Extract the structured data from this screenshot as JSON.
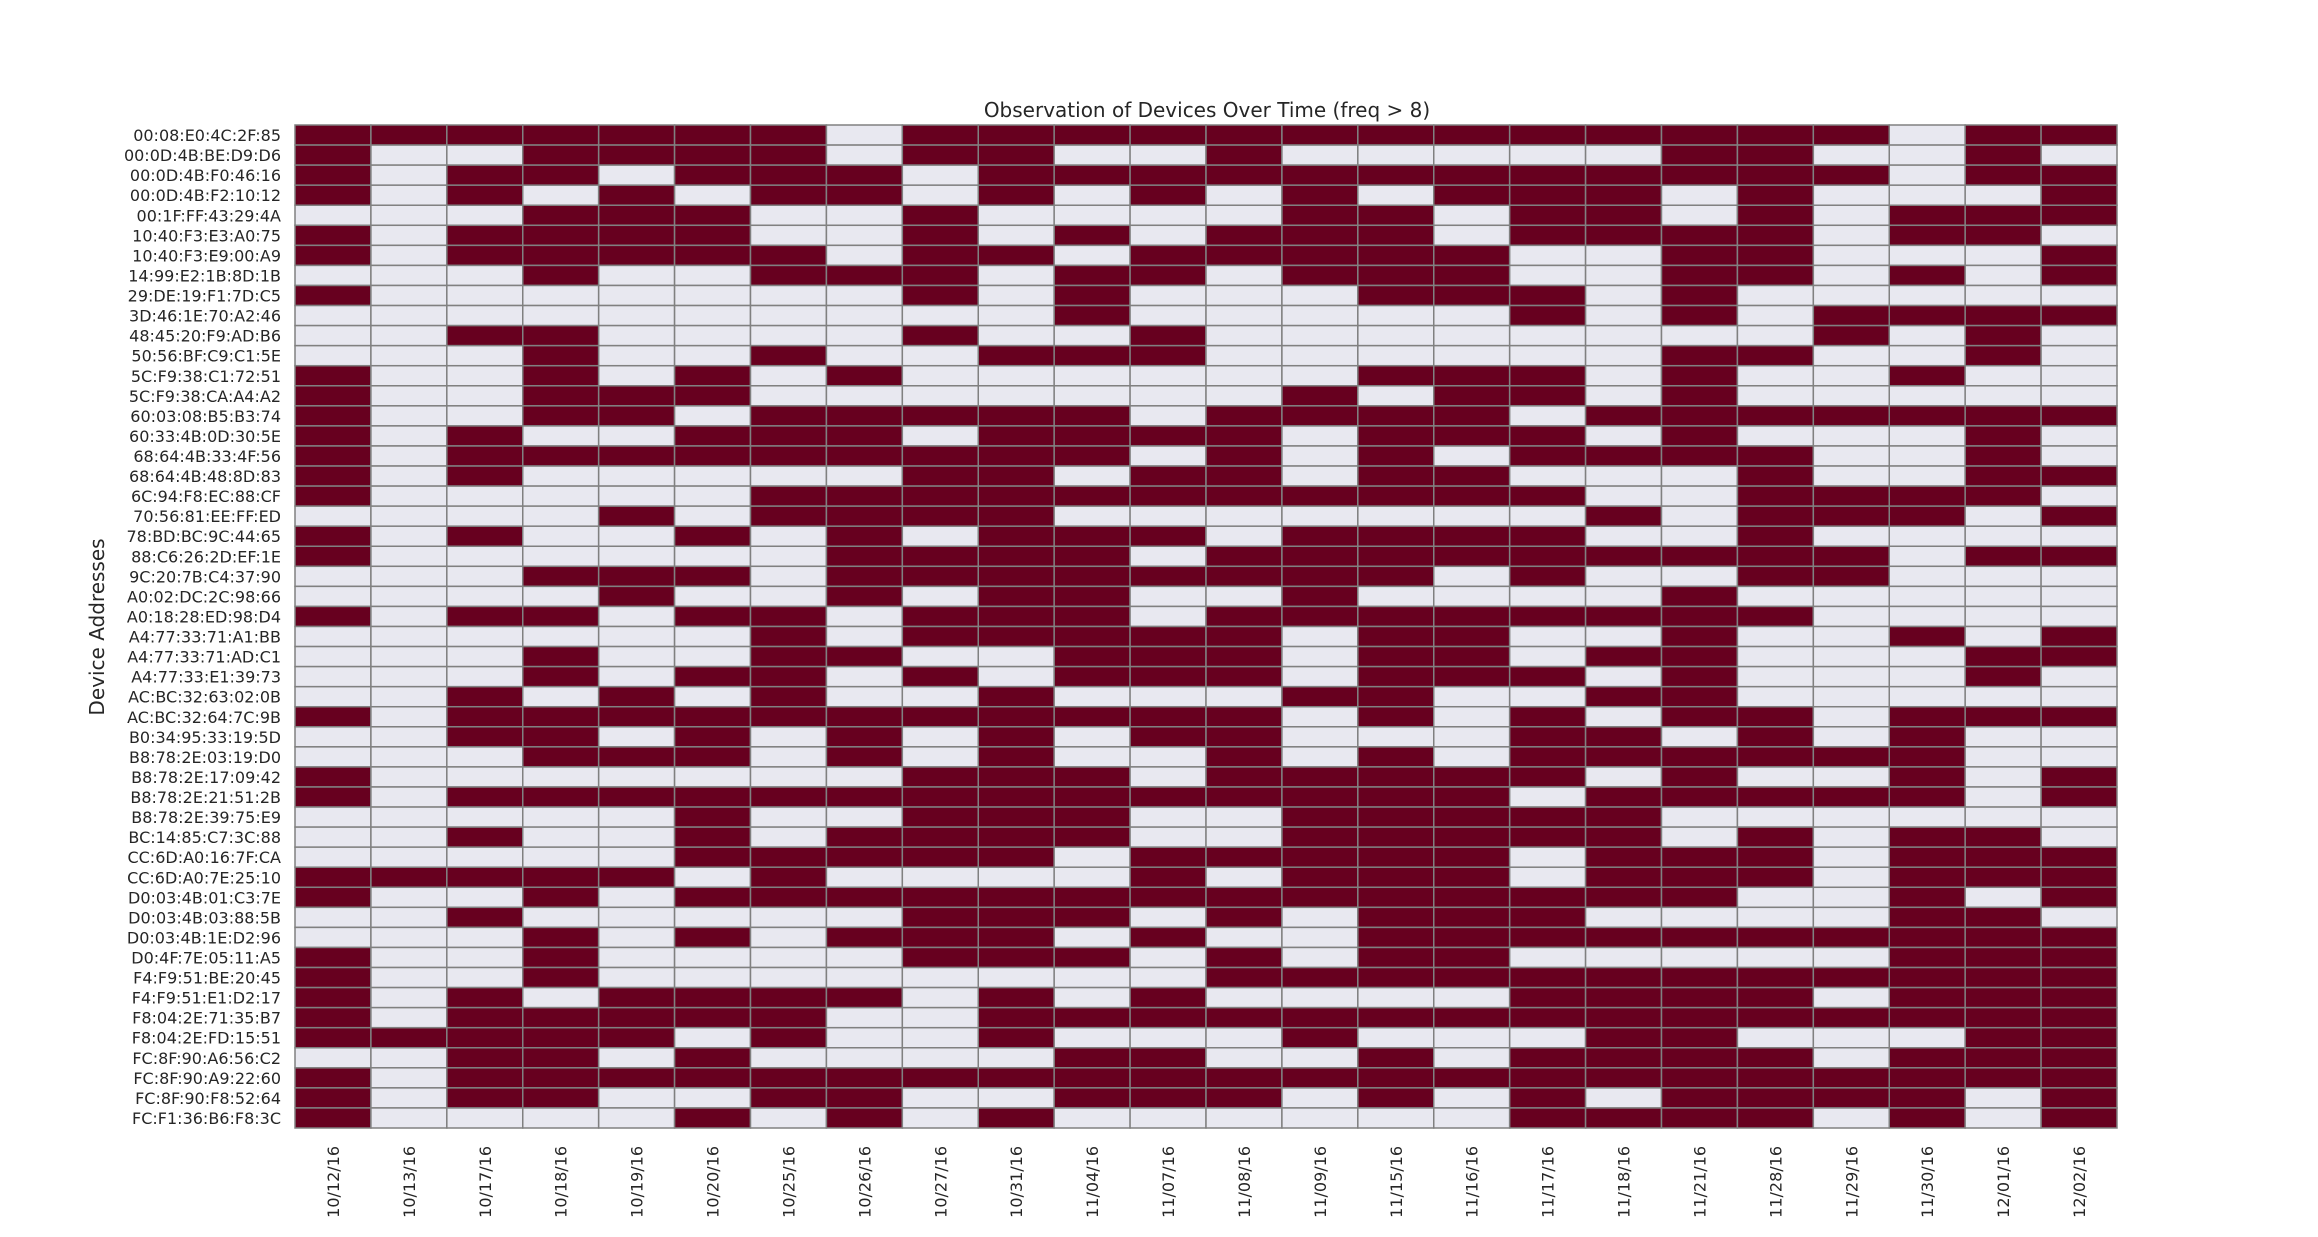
{
  "chart_data": {
    "type": "heatmap",
    "title": "Observation of Devices Over Time (freq > 8)",
    "xlabel": "",
    "ylabel": "Device Addresses",
    "colors": {
      "observed": "#67001f",
      "not_observed": "#e8e8f0",
      "cell_border": "#808080"
    },
    "grid": true,
    "columns": [
      "10/12/16",
      "10/13/16",
      "10/17/16",
      "10/18/16",
      "10/19/16",
      "10/20/16",
      "10/25/16",
      "10/26/16",
      "10/27/16",
      "10/31/16",
      "11/04/16",
      "11/07/16",
      "11/08/16",
      "11/09/16",
      "11/15/16",
      "11/16/16",
      "11/17/16",
      "11/18/16",
      "11/21/16",
      "11/28/16",
      "11/29/16",
      "11/30/16",
      "12/01/16",
      "12/02/16"
    ],
    "rows": [
      "00:08:E0:4C:2F:85",
      "00:0D:4B:BE:D9:D6",
      "00:0D:4B:F0:46:16",
      "00:0D:4B:F2:10:12",
      "00:1F:FF:43:29:4A",
      "10:40:F3:E3:A0:75",
      "10:40:F3:E9:00:A9",
      "14:99:E2:1B:8D:1B",
      "29:DE:19:F1:7D:C5",
      "3D:46:1E:70:A2:46",
      "48:45:20:F9:AD:B6",
      "50:56:BF:C9:C1:5E",
      "5C:F9:38:C1:72:51",
      "5C:F9:38:CA:A4:A2",
      "60:03:08:B5:B3:74",
      "60:33:4B:0D:30:5E",
      "68:64:4B:33:4F:56",
      "68:64:4B:48:8D:83",
      "6C:94:F8:EC:88:CF",
      "70:56:81:EE:FF:ED",
      "78:BD:BC:9C:44:65",
      "88:C6:26:2D:EF:1E",
      "9C:20:7B:C4:37:90",
      "A0:02:DC:2C:98:66",
      "A0:18:28:ED:98:D4",
      "A4:77:33:71:A1:BB",
      "A4:77:33:71:AD:C1",
      "A4:77:33:E1:39:73",
      "AC:BC:32:63:02:0B",
      "AC:BC:32:64:7C:9B",
      "B0:34:95:33:19:5D",
      "B8:78:2E:03:19:D0",
      "B8:78:2E:17:09:42",
      "B8:78:2E:21:51:2B",
      "B8:78:2E:39:75:E9",
      "BC:14:85:C7:3C:88",
      "CC:6D:A0:16:7F:CA",
      "CC:6D:A0:7E:25:10",
      "D0:03:4B:01:C3:7E",
      "D0:03:4B:03:88:5B",
      "D0:03:4B:1E:D2:96",
      "D0:4F:7E:05:11:A5",
      "F4:F9:51:BE:20:45",
      "F4:F9:51:E1:D2:17",
      "F8:04:2E:71:35:B7",
      "F8:04:2E:FD:15:51",
      "FC:8F:90:A6:56:C2",
      "FC:8F:90:A9:22:60",
      "FC:8F:90:F8:52:64",
      "FC:F1:36:B6:F8:3C"
    ],
    "values": [
      [
        1,
        1,
        1,
        1,
        1,
        1,
        1,
        0,
        1,
        1,
        1,
        1,
        1,
        1,
        1,
        1,
        1,
        1,
        1,
        1,
        1,
        0,
        1,
        1
      ],
      [
        1,
        0,
        0,
        1,
        1,
        1,
        1,
        0,
        1,
        1,
        0,
        0,
        1,
        0,
        0,
        0,
        0,
        0,
        1,
        1,
        0,
        0,
        1,
        0
      ],
      [
        1,
        0,
        1,
        1,
        0,
        1,
        1,
        1,
        0,
        1,
        1,
        1,
        1,
        1,
        1,
        1,
        1,
        1,
        1,
        1,
        1,
        0,
        1,
        1
      ],
      [
        1,
        0,
        1,
        0,
        1,
        0,
        1,
        1,
        0,
        1,
        0,
        1,
        0,
        1,
        0,
        1,
        1,
        1,
        0,
        1,
        0,
        0,
        0,
        1
      ],
      [
        0,
        0,
        0,
        1,
        1,
        1,
        0,
        0,
        1,
        0,
        0,
        0,
        0,
        1,
        1,
        0,
        1,
        1,
        0,
        1,
        0,
        1,
        1,
        1
      ],
      [
        1,
        0,
        1,
        1,
        1,
        1,
        0,
        0,
        1,
        0,
        1,
        0,
        1,
        1,
        1,
        0,
        1,
        1,
        1,
        1,
        0,
        1,
        1,
        0
      ],
      [
        1,
        0,
        1,
        1,
        1,
        1,
        1,
        0,
        1,
        1,
        0,
        1,
        1,
        1,
        1,
        1,
        0,
        0,
        1,
        1,
        0,
        0,
        0,
        1
      ],
      [
        0,
        0,
        0,
        1,
        0,
        0,
        1,
        1,
        1,
        0,
        1,
        1,
        0,
        1,
        1,
        1,
        0,
        0,
        1,
        1,
        0,
        1,
        0,
        1
      ],
      [
        1,
        0,
        0,
        0,
        0,
        0,
        0,
        0,
        1,
        0,
        1,
        0,
        0,
        0,
        1,
        1,
        1,
        0,
        1,
        0,
        0,
        0,
        0,
        0
      ],
      [
        0,
        0,
        0,
        0,
        0,
        0,
        0,
        0,
        0,
        0,
        1,
        0,
        0,
        0,
        0,
        0,
        1,
        0,
        1,
        0,
        1,
        1,
        1,
        1
      ],
      [
        0,
        0,
        1,
        1,
        0,
        0,
        0,
        0,
        1,
        0,
        0,
        1,
        0,
        0,
        0,
        0,
        0,
        0,
        0,
        0,
        1,
        0,
        1,
        0
      ],
      [
        0,
        0,
        0,
        1,
        0,
        0,
        1,
        0,
        0,
        1,
        1,
        1,
        0,
        0,
        0,
        0,
        0,
        0,
        1,
        1,
        0,
        0,
        1,
        0
      ],
      [
        1,
        0,
        0,
        1,
        0,
        1,
        0,
        1,
        0,
        0,
        0,
        0,
        0,
        0,
        1,
        1,
        1,
        0,
        1,
        0,
        0,
        1,
        0,
        0
      ],
      [
        1,
        0,
        0,
        1,
        1,
        1,
        0,
        0,
        0,
        0,
        0,
        0,
        0,
        1,
        0,
        1,
        1,
        0,
        1,
        0,
        0,
        0,
        0,
        0
      ],
      [
        1,
        0,
        0,
        1,
        1,
        0,
        1,
        1,
        1,
        1,
        1,
        0,
        1,
        1,
        1,
        1,
        0,
        1,
        1,
        1,
        1,
        1,
        1,
        1
      ],
      [
        1,
        0,
        1,
        0,
        0,
        1,
        1,
        1,
        0,
        1,
        1,
        1,
        1,
        0,
        1,
        1,
        1,
        0,
        1,
        0,
        0,
        0,
        1,
        0
      ],
      [
        1,
        0,
        1,
        1,
        1,
        1,
        1,
        1,
        1,
        1,
        1,
        0,
        1,
        0,
        1,
        0,
        1,
        1,
        1,
        1,
        0,
        0,
        1,
        0
      ],
      [
        1,
        0,
        1,
        0,
        0,
        0,
        0,
        0,
        1,
        1,
        0,
        1,
        1,
        0,
        1,
        1,
        0,
        0,
        0,
        1,
        0,
        0,
        1,
        1
      ],
      [
        1,
        0,
        0,
        0,
        0,
        0,
        1,
        1,
        1,
        1,
        1,
        1,
        1,
        1,
        1,
        1,
        1,
        0,
        0,
        1,
        1,
        1,
        1,
        0
      ],
      [
        0,
        0,
        0,
        0,
        1,
        0,
        1,
        1,
        1,
        1,
        0,
        0,
        0,
        0,
        0,
        0,
        0,
        1,
        0,
        1,
        1,
        1,
        0,
        1
      ],
      [
        1,
        0,
        1,
        0,
        0,
        1,
        0,
        1,
        0,
        1,
        1,
        1,
        0,
        1,
        1,
        1,
        1,
        0,
        0,
        1,
        0,
        0,
        0,
        0
      ],
      [
        1,
        0,
        0,
        0,
        0,
        0,
        0,
        1,
        1,
        1,
        1,
        0,
        1,
        1,
        1,
        1,
        1,
        1,
        1,
        1,
        1,
        0,
        1,
        1
      ],
      [
        0,
        0,
        0,
        1,
        1,
        1,
        0,
        1,
        1,
        1,
        1,
        1,
        1,
        1,
        1,
        0,
        1,
        0,
        0,
        1,
        1,
        0,
        0,
        0
      ],
      [
        0,
        0,
        0,
        0,
        1,
        0,
        0,
        1,
        0,
        1,
        1,
        0,
        0,
        1,
        0,
        0,
        0,
        0,
        1,
        0,
        0,
        0,
        0,
        0
      ],
      [
        1,
        0,
        1,
        1,
        0,
        1,
        1,
        0,
        1,
        1,
        1,
        0,
        1,
        1,
        1,
        1,
        1,
        1,
        1,
        1,
        0,
        0,
        0,
        0
      ],
      [
        0,
        0,
        0,
        0,
        0,
        0,
        1,
        0,
        1,
        1,
        1,
        1,
        1,
        0,
        1,
        1,
        0,
        0,
        1,
        0,
        0,
        1,
        0,
        1
      ],
      [
        0,
        0,
        0,
        1,
        0,
        0,
        1,
        1,
        0,
        0,
        1,
        1,
        1,
        0,
        1,
        1,
        0,
        1,
        1,
        0,
        0,
        0,
        1,
        1
      ],
      [
        0,
        0,
        0,
        1,
        0,
        1,
        1,
        0,
        1,
        0,
        1,
        1,
        1,
        0,
        1,
        1,
        1,
        0,
        1,
        0,
        0,
        0,
        1,
        0
      ],
      [
        0,
        0,
        1,
        0,
        1,
        0,
        1,
        0,
        0,
        1,
        0,
        0,
        0,
        1,
        1,
        0,
        0,
        1,
        1,
        0,
        0,
        0,
        0,
        0
      ],
      [
        1,
        0,
        1,
        1,
        1,
        1,
        1,
        1,
        1,
        1,
        1,
        1,
        1,
        0,
        1,
        0,
        1,
        0,
        1,
        1,
        0,
        1,
        1,
        1
      ],
      [
        0,
        0,
        1,
        1,
        0,
        1,
        0,
        1,
        0,
        1,
        0,
        1,
        1,
        0,
        0,
        0,
        1,
        1,
        0,
        1,
        0,
        1,
        0,
        0
      ],
      [
        0,
        0,
        0,
        1,
        1,
        1,
        0,
        1,
        0,
        1,
        0,
        0,
        1,
        0,
        1,
        0,
        1,
        1,
        1,
        1,
        1,
        1,
        0,
        0
      ],
      [
        1,
        0,
        0,
        0,
        0,
        0,
        0,
        0,
        1,
        1,
        1,
        0,
        1,
        1,
        1,
        1,
        1,
        0,
        1,
        0,
        0,
        1,
        0,
        1
      ],
      [
        1,
        0,
        1,
        1,
        1,
        1,
        1,
        1,
        1,
        1,
        1,
        1,
        1,
        1,
        1,
        1,
        0,
        1,
        1,
        1,
        1,
        1,
        0,
        1
      ],
      [
        0,
        0,
        0,
        0,
        0,
        1,
        0,
        0,
        1,
        1,
        1,
        0,
        0,
        1,
        1,
        1,
        1,
        1,
        0,
        0,
        0,
        0,
        0,
        0
      ],
      [
        0,
        0,
        1,
        0,
        0,
        1,
        0,
        1,
        1,
        1,
        1,
        0,
        0,
        1,
        1,
        1,
        1,
        1,
        0,
        1,
        0,
        1,
        1,
        0
      ],
      [
        0,
        0,
        0,
        0,
        0,
        1,
        1,
        1,
        1,
        1,
        0,
        1,
        1,
        1,
        1,
        1,
        0,
        1,
        1,
        1,
        0,
        1,
        1,
        1
      ],
      [
        1,
        1,
        1,
        1,
        1,
        0,
        1,
        0,
        0,
        0,
        0,
        1,
        0,
        1,
        1,
        1,
        0,
        1,
        1,
        1,
        0,
        1,
        1,
        1
      ],
      [
        1,
        0,
        0,
        1,
        0,
        1,
        1,
        1,
        1,
        1,
        1,
        1,
        1,
        1,
        1,
        1,
        1,
        1,
        1,
        0,
        0,
        1,
        0,
        1
      ],
      [
        0,
        0,
        1,
        0,
        0,
        0,
        0,
        0,
        1,
        1,
        1,
        0,
        1,
        0,
        1,
        1,
        1,
        0,
        0,
        0,
        0,
        1,
        1,
        0
      ],
      [
        0,
        0,
        0,
        1,
        0,
        1,
        0,
        1,
        1,
        1,
        0,
        1,
        0,
        0,
        1,
        1,
        1,
        1,
        1,
        1,
        1,
        1,
        1,
        1
      ],
      [
        1,
        0,
        0,
        1,
        0,
        0,
        0,
        0,
        1,
        1,
        1,
        0,
        1,
        0,
        1,
        1,
        0,
        0,
        0,
        0,
        0,
        1,
        1,
        1
      ],
      [
        1,
        0,
        0,
        1,
        0,
        0,
        0,
        0,
        0,
        0,
        0,
        0,
        1,
        1,
        1,
        1,
        1,
        1,
        1,
        1,
        1,
        1,
        1,
        1
      ],
      [
        1,
        0,
        1,
        0,
        1,
        1,
        1,
        1,
        0,
        1,
        0,
        1,
        0,
        0,
        0,
        0,
        1,
        1,
        1,
        1,
        0,
        1,
        1,
        1
      ],
      [
        1,
        0,
        1,
        1,
        1,
        1,
        1,
        0,
        0,
        1,
        1,
        1,
        1,
        1,
        1,
        1,
        1,
        1,
        1,
        1,
        1,
        1,
        1,
        1
      ],
      [
        1,
        1,
        1,
        1,
        1,
        0,
        1,
        0,
        0,
        1,
        0,
        0,
        0,
        1,
        0,
        0,
        0,
        1,
        1,
        0,
        0,
        0,
        1,
        1
      ],
      [
        0,
        0,
        1,
        1,
        0,
        1,
        0,
        0,
        0,
        0,
        1,
        1,
        0,
        0,
        1,
        0,
        1,
        1,
        1,
        1,
        0,
        1,
        1,
        1
      ],
      [
        1,
        0,
        1,
        1,
        1,
        1,
        1,
        1,
        1,
        1,
        1,
        1,
        1,
        1,
        1,
        1,
        1,
        1,
        1,
        1,
        1,
        1,
        1,
        1
      ],
      [
        1,
        0,
        1,
        1,
        0,
        0,
        1,
        1,
        0,
        0,
        1,
        1,
        1,
        0,
        1,
        0,
        1,
        0,
        1,
        1,
        1,
        1,
        0,
        1
      ],
      [
        1,
        0,
        0,
        0,
        0,
        1,
        0,
        1,
        0,
        1,
        0,
        0,
        0,
        0,
        0,
        0,
        1,
        1,
        1,
        1,
        0,
        1,
        0,
        1
      ]
    ]
  }
}
